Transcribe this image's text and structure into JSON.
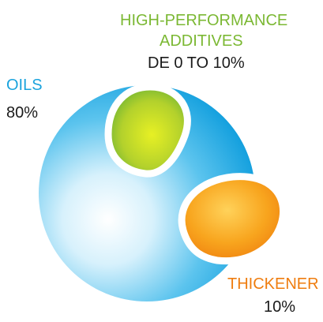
{
  "components": [
    {
      "name": "OILS",
      "value": "80%",
      "color": "#1aa3dd"
    },
    {
      "name_lines": [
        "HIGH-PERFORMANCE",
        "ADDITIVES"
      ],
      "value": "DE 0 TO 10%",
      "color": "#7bb833"
    },
    {
      "name": "THICKENER",
      "value": "10%",
      "color": "#ef7d0f"
    }
  ]
}
